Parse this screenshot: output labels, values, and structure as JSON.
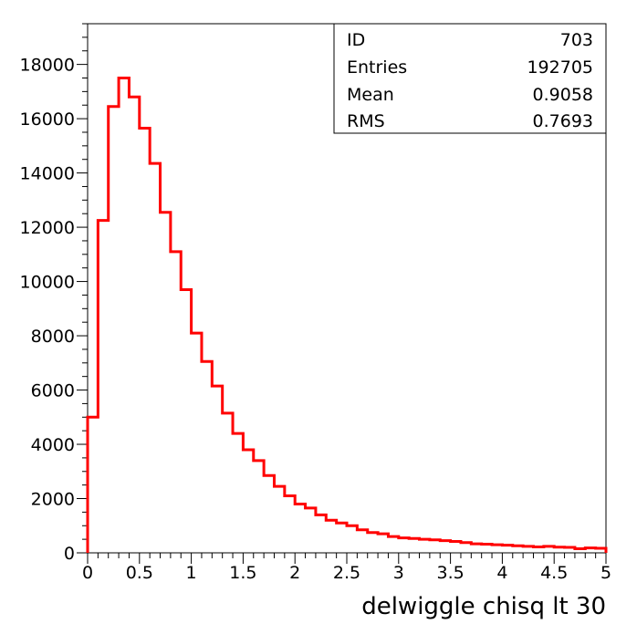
{
  "chart_data": {
    "type": "histogram",
    "xlabel": "delwiggle chisq lt 30",
    "xlim": [
      0,
      5
    ],
    "ylim": [
      0,
      19500
    ],
    "x_ticks": [
      "0",
      "0.5",
      "1",
      "1.5",
      "2",
      "2.5",
      "3",
      "3.5",
      "4",
      "4.5",
      "5"
    ],
    "y_ticks": [
      "0",
      "2000",
      "4000",
      "6000",
      "8000",
      "10000",
      "12000",
      "14000",
      "16000",
      "18000"
    ],
    "bin_width": 0.1,
    "values": [
      5000,
      12250,
      16450,
      17500,
      16800,
      15650,
      14350,
      12550,
      11100,
      9700,
      8100,
      7050,
      6150,
      5150,
      4400,
      3800,
      3400,
      2850,
      2450,
      2100,
      1800,
      1650,
      1400,
      1200,
      1100,
      1000,
      850,
      750,
      700,
      600,
      550,
      530,
      500,
      480,
      450,
      420,
      380,
      330,
      320,
      300,
      280,
      260,
      240,
      220,
      240,
      210,
      200,
      150,
      180,
      170
    ],
    "line_color": "#ff0000",
    "stats_box": {
      "position": "top-right",
      "rows": [
        {
          "label": "ID",
          "value": "703"
        },
        {
          "label": "Entries",
          "value": "192705"
        },
        {
          "label": "Mean",
          "value": "0.9058"
        },
        {
          "label": "RMS",
          "value": "0.7693"
        }
      ]
    }
  }
}
